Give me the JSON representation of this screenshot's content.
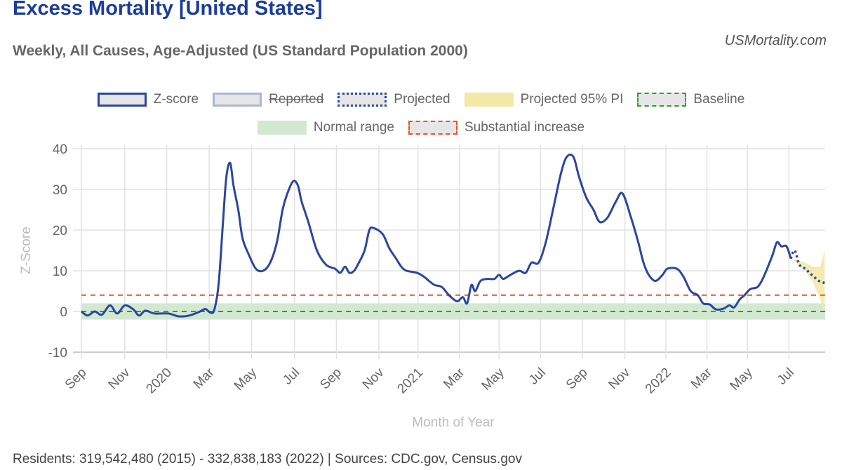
{
  "header": {
    "title": "Excess Mortality [United States]",
    "subtitle": "Weekly, All Causes, Age-Adjusted (US Standard Population 2000)",
    "site": "USMortality.com"
  },
  "legend": [
    {
      "label": "Z-score",
      "style": "solid-blue",
      "struck": false
    },
    {
      "label": "Reported",
      "style": "light-blue",
      "struck": true
    },
    {
      "label": "Projected",
      "style": "dotted-blue",
      "struck": false
    },
    {
      "label": "Projected 95% PI",
      "style": "yellow-fill",
      "struck": false
    },
    {
      "label": "Baseline",
      "style": "dashed-green",
      "struck": false
    },
    {
      "label": "Normal range",
      "style": "green-fill",
      "struck": false
    },
    {
      "label": "Substantial increase",
      "style": "dashed-red",
      "struck": false
    }
  ],
  "footer": "Residents: 319,542,480 (2015) - 332,838,183 (2022) | Sources: CDC.gov, Census.gov",
  "colors": {
    "zscore": "#2a46a0",
    "baseline": "#2ca02c",
    "increase": "#f0501e",
    "normal": "#d3e8d0",
    "pi": "#f3e9a8"
  },
  "chart_data": {
    "type": "line",
    "xlabel": "Month of Year",
    "ylabel": "Z-Score",
    "ylim": [
      -10,
      40
    ],
    "xlim_weeks": [
      0,
      156
    ],
    "x_unit": "weeks since Sep 2019",
    "yticks": [
      40,
      30,
      20,
      10,
      0,
      -10
    ],
    "xticks": [
      {
        "label": "Sep",
        "w": 0
      },
      {
        "label": "Nov",
        "w": 9.1
      },
      {
        "label": "2020",
        "w": 17.9
      },
      {
        "label": "Mar",
        "w": 26.8
      },
      {
        "label": "May",
        "w": 35.7
      },
      {
        "label": "Jul",
        "w": 44.7
      },
      {
        "label": "Sep",
        "w": 53.5
      },
      {
        "label": "Nov",
        "w": 62.4
      },
      {
        "label": "2021",
        "w": 70.6
      },
      {
        "label": "Mar",
        "w": 79.3
      },
      {
        "label": "May",
        "w": 87.6
      },
      {
        "label": "Jul",
        "w": 96.3
      },
      {
        "label": "Sep",
        "w": 105.1
      },
      {
        "label": "Nov",
        "w": 114.0
      },
      {
        "label": "2022",
        "w": 122.6
      },
      {
        "label": "Mar",
        "w": 131.2
      },
      {
        "label": "May",
        "w": 139.7
      },
      {
        "label": "Jul",
        "w": 148.4
      }
    ],
    "baseline": 0,
    "normal_range": [
      -2,
      2
    ],
    "substantial_increase": 4,
    "zscore": [
      [
        0,
        0
      ],
      [
        1.3,
        -1
      ],
      [
        2.8,
        0
      ],
      [
        4.3,
        -0.8
      ],
      [
        6,
        1.5
      ],
      [
        7.5,
        -0.5
      ],
      [
        9.1,
        1.5
      ],
      [
        10.9,
        0.5
      ],
      [
        12.1,
        -1
      ],
      [
        13.4,
        0.2
      ],
      [
        15.3,
        -0.5
      ],
      [
        18.2,
        -0.5
      ],
      [
        20.4,
        -1.2
      ],
      [
        22.6,
        -1
      ],
      [
        24.9,
        0
      ],
      [
        26,
        0.6
      ],
      [
        27.1,
        -0.3
      ],
      [
        27.9,
        0.5
      ],
      [
        28.8,
        7
      ],
      [
        29.7,
        22
      ],
      [
        30.4,
        33
      ],
      [
        31.2,
        36.5
      ],
      [
        31.9,
        31
      ],
      [
        32.9,
        25
      ],
      [
        33.8,
        18
      ],
      [
        35.1,
        14
      ],
      [
        36.6,
        10.5
      ],
      [
        38.1,
        10
      ],
      [
        39.6,
        12
      ],
      [
        41,
        17
      ],
      [
        42.2,
        25
      ],
      [
        43.2,
        29
      ],
      [
        44.4,
        32
      ],
      [
        45.4,
        31
      ],
      [
        46.2,
        27
      ],
      [
        47.6,
        22
      ],
      [
        49.4,
        15
      ],
      [
        51.3,
        11.5
      ],
      [
        53.2,
        10.5
      ],
      [
        54.3,
        9.5
      ],
      [
        55.3,
        11
      ],
      [
        56.2,
        9.5
      ],
      [
        57.2,
        10
      ],
      [
        58.2,
        12
      ],
      [
        59.4,
        15
      ],
      [
        60.4,
        20
      ],
      [
        61.3,
        20.5
      ],
      [
        63.2,
        19
      ],
      [
        64.6,
        15.5
      ],
      [
        66,
        13
      ],
      [
        67.1,
        11
      ],
      [
        68.2,
        10
      ],
      [
        70.4,
        9.5
      ],
      [
        71.9,
        8.5
      ],
      [
        72.9,
        7.5
      ],
      [
        74.1,
        6.5
      ],
      [
        75.6,
        6
      ],
      [
        77.1,
        4
      ],
      [
        78.8,
        2.5
      ],
      [
        80,
        3.5
      ],
      [
        80.9,
        2
      ],
      [
        81.8,
        6.5
      ],
      [
        82.6,
        5
      ],
      [
        83.7,
        7.5
      ],
      [
        85.1,
        8
      ],
      [
        86.6,
        8
      ],
      [
        87.6,
        9
      ],
      [
        88.5,
        8
      ],
      [
        90,
        9
      ],
      [
        91.8,
        10
      ],
      [
        93.2,
        9.5
      ],
      [
        94.4,
        12
      ],
      [
        95.9,
        12
      ],
      [
        97.4,
        17
      ],
      [
        99.1,
        26
      ],
      [
        100.6,
        34
      ],
      [
        101.8,
        38
      ],
      [
        103.2,
        38
      ],
      [
        104.4,
        33
      ],
      [
        105.9,
        28
      ],
      [
        107.4,
        25
      ],
      [
        108.7,
        22
      ],
      [
        110.3,
        23
      ],
      [
        112.1,
        27
      ],
      [
        113.5,
        29
      ],
      [
        115.3,
        23
      ],
      [
        116.8,
        17
      ],
      [
        117.9,
        12
      ],
      [
        119,
        9
      ],
      [
        120.4,
        7.5
      ],
      [
        121.9,
        9
      ],
      [
        122.9,
        10.5
      ],
      [
        124.9,
        10.5
      ],
      [
        126.3,
        8.5
      ],
      [
        127.8,
        5
      ],
      [
        129.3,
        4
      ],
      [
        130.4,
        2
      ],
      [
        131.8,
        1.7
      ],
      [
        133.1,
        0.5
      ],
      [
        134.7,
        0.7
      ],
      [
        135.9,
        1.5
      ],
      [
        136.9,
        1
      ],
      [
        138.1,
        3
      ],
      [
        139.1,
        4
      ],
      [
        140.3,
        5.5
      ],
      [
        141.8,
        6
      ],
      [
        142.9,
        8
      ],
      [
        144,
        11
      ],
      [
        145,
        14
      ],
      [
        145.9,
        17
      ],
      [
        146.8,
        16
      ],
      [
        147.9,
        16
      ],
      [
        148.8,
        13
      ]
    ],
    "projected": [
      [
        148.8,
        13
      ],
      [
        149.6,
        15
      ],
      [
        150.6,
        11.5
      ],
      [
        151.8,
        10.5
      ],
      [
        153.2,
        9
      ],
      [
        154.7,
        7.5
      ],
      [
        155.9,
        7
      ]
    ],
    "pi_upper": [
      [
        148.8,
        13
      ],
      [
        151.8,
        12
      ],
      [
        153.5,
        11
      ],
      [
        155,
        11
      ],
      [
        155.9,
        15
      ]
    ],
    "pi_lower": [
      [
        148.8,
        13
      ],
      [
        151.8,
        10
      ],
      [
        153.5,
        7
      ],
      [
        155,
        3
      ],
      [
        155.9,
        -1
      ]
    ]
  }
}
